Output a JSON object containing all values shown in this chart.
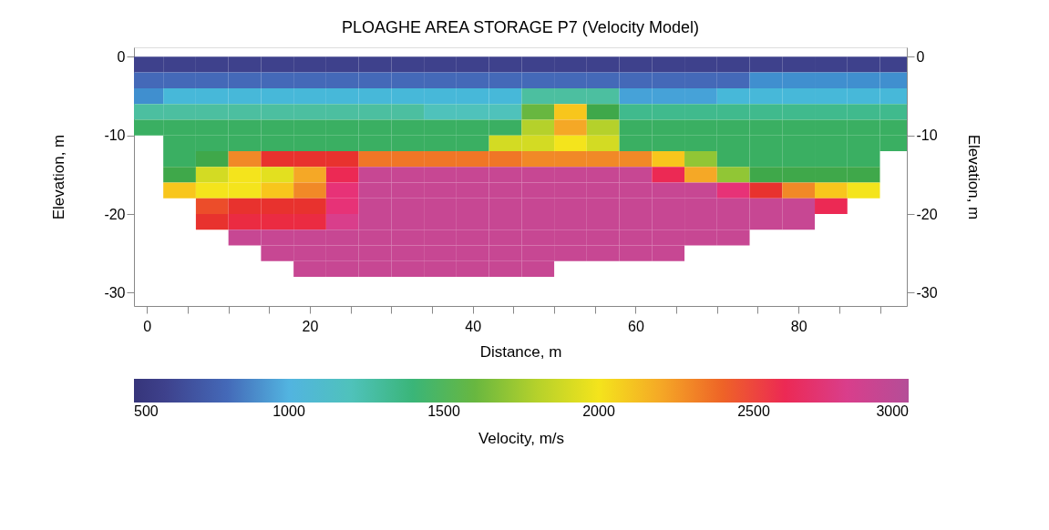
{
  "chart_data": {
    "type": "heatmap",
    "title": "PLOAGHE AREA   STORAGE          P7 (Velocity Model)",
    "xlabel": "Distance,  m",
    "ylabel": "Elevation, m",
    "y2label": "Elevation, m",
    "clabel": "Velocity, m/s",
    "x": [
      0,
      4,
      8,
      12,
      16,
      20,
      24,
      28,
      32,
      36,
      40,
      44,
      48,
      52,
      56,
      60,
      64,
      68,
      72,
      76,
      80,
      84,
      88,
      92
    ],
    "y": [
      -1,
      -3,
      -5,
      -7,
      -9,
      -11,
      -13,
      -15,
      -17,
      -19,
      -21,
      -23,
      -25,
      -27
    ],
    "cells": [
      [
        600,
        600,
        600,
        600,
        600,
        600,
        600,
        600,
        600,
        600,
        600,
        600,
        600,
        600,
        600,
        600,
        600,
        600,
        600,
        600,
        600,
        600,
        600,
        600
      ],
      [
        800,
        800,
        800,
        800,
        800,
        800,
        800,
        800,
        800,
        800,
        800,
        800,
        800,
        800,
        800,
        800,
        800,
        800,
        800,
        900,
        900,
        900,
        900,
        900
      ],
      [
        900,
        1050,
        1050,
        1050,
        1050,
        1050,
        1050,
        1050,
        1050,
        1050,
        1050,
        1050,
        1300,
        1300,
        1300,
        950,
        950,
        950,
        1050,
        1050,
        1050,
        1050,
        1050,
        1050
      ],
      [
        1300,
        1300,
        1300,
        1300,
        1300,
        1300,
        1300,
        1300,
        1300,
        1200,
        1200,
        1200,
        1600,
        2100,
        1500,
        1350,
        1350,
        1350,
        1350,
        1350,
        1350,
        1350,
        1350,
        1350
      ],
      [
        1450,
        1450,
        1450,
        1450,
        1450,
        1450,
        1450,
        1450,
        1450,
        1450,
        1450,
        1450,
        1800,
        2200,
        1800,
        1450,
        1450,
        1450,
        1450,
        1450,
        1450,
        1450,
        1450,
        1450
      ],
      [
        null,
        1450,
        1450,
        1450,
        1450,
        1450,
        1450,
        1450,
        1450,
        1450,
        1450,
        1900,
        1900,
        2000,
        1900,
        1450,
        1450,
        1450,
        1450,
        1450,
        1450,
        1450,
        1450,
        1450
      ],
      [
        null,
        1450,
        1500,
        2300,
        2500,
        2500,
        2500,
        2350,
        2350,
        2350,
        2350,
        2350,
        2300,
        2300,
        2300,
        2300,
        2100,
        1700,
        1450,
        1450,
        1450,
        1450,
        1450,
        null
      ],
      [
        null,
        1500,
        1900,
        2000,
        1950,
        2200,
        2600,
        2900,
        2900,
        2900,
        2900,
        2900,
        2900,
        2900,
        2900,
        2900,
        2600,
        2200,
        1700,
        1500,
        1500,
        1500,
        1500,
        null
      ],
      [
        null,
        2100,
        2000,
        2000,
        2100,
        2300,
        2700,
        2900,
        2900,
        2900,
        2900,
        2900,
        2900,
        2900,
        2900,
        2900,
        2900,
        2900,
        2700,
        2500,
        2300,
        2100,
        2000,
        null
      ],
      [
        null,
        null,
        2450,
        2500,
        2500,
        2500,
        2700,
        2900,
        2900,
        2900,
        2900,
        2900,
        2900,
        2900,
        2900,
        2900,
        2900,
        2900,
        2900,
        2900,
        2900,
        2600,
        null,
        null
      ],
      [
        null,
        null,
        2500,
        2550,
        2550,
        2550,
        2800,
        2900,
        2900,
        2900,
        2900,
        2900,
        2900,
        2900,
        2900,
        2900,
        2900,
        2900,
        2900,
        2900,
        2900,
        null,
        null,
        null
      ],
      [
        null,
        null,
        null,
        2900,
        2900,
        2900,
        2900,
        2900,
        2900,
        2900,
        2900,
        2900,
        2900,
        2900,
        2900,
        2900,
        2900,
        2900,
        2900,
        null,
        null,
        null,
        null,
        null
      ],
      [
        null,
        null,
        null,
        null,
        2900,
        2900,
        2900,
        2900,
        2900,
        2900,
        2900,
        2900,
        2900,
        2900,
        2900,
        2900,
        2900,
        null,
        null,
        null,
        null,
        null,
        null,
        null
      ],
      [
        null,
        null,
        null,
        null,
        null,
        2900,
        2900,
        2900,
        2900,
        2900,
        2900,
        2900,
        2900,
        null,
        null,
        null,
        null,
        null,
        null,
        null,
        null,
        null,
        null,
        null
      ]
    ],
    "colors": [
      "#36357a",
      "#4a55a8",
      "#52b4e0",
      "#5cc4b0",
      "#3fa84a",
      "#a6cc30",
      "#f4e41c",
      "#f29a2c",
      "#e8322e",
      "#e23a86",
      "#b44e98"
    ],
    "clim": [
      500,
      3000
    ],
    "cticks": [
      500,
      1000,
      1500,
      2000,
      2500,
      3000
    ],
    "xlim": [
      -1.6,
      93.3
    ],
    "xticks": [
      0,
      {
        "value": 5,
        "label": null
      },
      {
        "value": 10,
        "label": null
      },
      {
        "value": 15,
        "label": null
      },
      20,
      {
        "value": 25,
        "label": null
      },
      {
        "value": 30,
        "label": null
      },
      {
        "value": 35,
        "label": null
      },
      40,
      {
        "value": 45,
        "label": null
      },
      {
        "value": 50,
        "label": null
      },
      {
        "value": 55,
        "label": null
      },
      60,
      {
        "value": 65,
        "label": null
      },
      {
        "value": 70,
        "label": null
      },
      {
        "value": 75,
        "label": null
      },
      80,
      {
        "value": 85,
        "label": null
      },
      {
        "value": 90,
        "label": null
      }
    ],
    "ylim": [
      -31.7,
      1.2
    ],
    "yticks": [
      0,
      -10,
      -20,
      -30
    ],
    "y2lim": [
      -31.7,
      1.2
    ],
    "y2ticks": [
      0,
      -10,
      -20,
      -30
    ],
    "grid": false
  }
}
